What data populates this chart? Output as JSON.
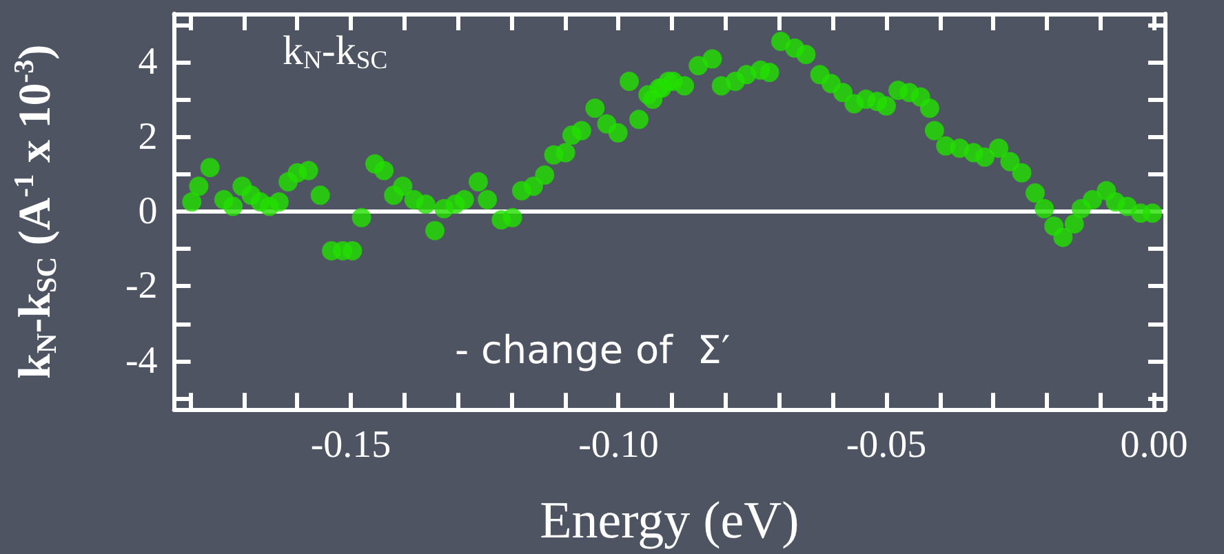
{
  "chart_data": {
    "type": "scatter",
    "xlabel": "Energy (eV)",
    "ylabel": "k$_{N}$-k$_{SC}$ (A$^{-1}$ x 10$^{-3}$)",
    "annotations": [
      "k$_{N}$-k$_{SC}$",
      "- change of  Σ′"
    ],
    "x": [
      -0.1797,
      -0.1784,
      -0.1763,
      -0.1737,
      -0.172,
      -0.1703,
      -0.1686,
      -0.1669,
      -0.1652,
      -0.1634,
      -0.1617,
      -0.16,
      -0.1579,
      -0.1557,
      -0.1536,
      -0.1515,
      -0.1497,
      -0.148,
      -0.1455,
      -0.1438,
      -0.142,
      -0.1403,
      -0.1382,
      -0.136,
      -0.1343,
      -0.1326,
      -0.1305,
      -0.1288,
      -0.1262,
      -0.1245,
      -0.1219,
      -0.1198,
      -0.1181,
      -0.1159,
      -0.1138,
      -0.1121,
      -0.1099,
      -0.1087,
      -0.1069,
      -0.1044,
      -0.1022,
      -0.1001,
      -0.098,
      -0.0962,
      -0.0945,
      -0.0924,
      -0.0907,
      -0.0936,
      -0.0919,
      -0.0898,
      -0.0877,
      -0.0851,
      -0.0825,
      -0.0808,
      -0.0782,
      -0.0761,
      -0.0735,
      -0.0718,
      -0.0697,
      -0.0671,
      -0.065,
      -0.0624,
      -0.0603,
      -0.0581,
      -0.056,
      -0.0538,
      -0.0517,
      -0.05,
      -0.0478,
      -0.0457,
      -0.0436,
      -0.0419,
      -0.041,
      -0.0389,
      -0.0363,
      -0.0337,
      -0.0316,
      -0.029,
      -0.0269,
      -0.0247,
      -0.0222,
      -0.0205,
      -0.0187,
      -0.017,
      -0.0149,
      -0.0136,
      -0.0115,
      -0.0089,
      -0.0072,
      -0.005,
      -0.0025,
      -0.0003
    ],
    "series": [
      {
        "color": "#22e000",
        "values": [
          0.26,
          0.68,
          1.18,
          0.32,
          0.14,
          0.68,
          0.44,
          0.26,
          0.14,
          0.26,
          0.8,
          1.04,
          1.1,
          0.44,
          -1.05,
          -1.05,
          -1.05,
          -0.16,
          1.28,
          1.1,
          0.44,
          0.68,
          0.32,
          0.2,
          -0.51,
          0.08,
          0.2,
          0.32,
          0.8,
          0.32,
          -0.22,
          -0.16,
          0.56,
          0.68,
          0.98,
          1.52,
          1.58,
          2.05,
          2.17,
          2.77,
          2.35,
          2.11,
          3.49,
          2.47,
          3.13,
          3.31,
          3.49,
          3.01,
          3.31,
          3.49,
          3.37,
          3.91,
          4.09,
          3.37,
          3.49,
          3.67,
          3.79,
          3.73,
          4.56,
          4.38,
          4.21,
          3.67,
          3.43,
          3.19,
          2.89,
          3.01,
          2.95,
          2.83,
          3.25,
          3.19,
          3.07,
          2.77,
          2.17,
          1.76,
          1.7,
          1.58,
          1.46,
          1.7,
          1.34,
          1.04,
          0.5,
          0.08,
          -0.39,
          -0.69,
          -0.33,
          0.08,
          0.32,
          0.56,
          0.26,
          0.14,
          -0.04,
          -0.04
        ]
      }
    ],
    "marker": "circle",
    "xlim": [
      -0.183,
      0.002
    ],
    "xticks": [
      {
        "value": -0.18,
        "label": null
      },
      {
        "value": -0.17,
        "label": null
      },
      {
        "value": -0.16,
        "label": null
      },
      {
        "value": -0.15,
        "label": "-0.15"
      },
      {
        "value": -0.14,
        "label": null
      },
      {
        "value": -0.13,
        "label": null
      },
      {
        "value": -0.12,
        "label": null
      },
      {
        "value": -0.11,
        "label": null
      },
      {
        "value": -0.1,
        "label": "-0.10"
      },
      {
        "value": -0.09,
        "label": null
      },
      {
        "value": -0.08,
        "label": null
      },
      {
        "value": -0.07,
        "label": null
      },
      {
        "value": -0.06,
        "label": null
      },
      {
        "value": -0.05,
        "label": "-0.05"
      },
      {
        "value": -0.04,
        "label": null
      },
      {
        "value": -0.03,
        "label": null
      },
      {
        "value": -0.02,
        "label": null
      },
      {
        "value": -0.01,
        "label": null
      },
      {
        "value": 0,
        "label": "0.00"
      }
    ],
    "ylim": [
      -5.3,
      5.3
    ],
    "yticks": [
      {
        "value": -5,
        "label": null
      },
      -4,
      {
        "value": -3,
        "label": null
      },
      -2,
      {
        "value": -1,
        "label": null
      },
      0,
      {
        "value": 1,
        "label": null
      },
      2,
      {
        "value": 3,
        "label": null
      },
      4,
      {
        "value": 5,
        "label": null
      }
    ],
    "ref_lines": [
      {
        "axis": "y",
        "value": 0,
        "label": null,
        "color": "#ffffff"
      }
    ],
    "grid": false
  }
}
